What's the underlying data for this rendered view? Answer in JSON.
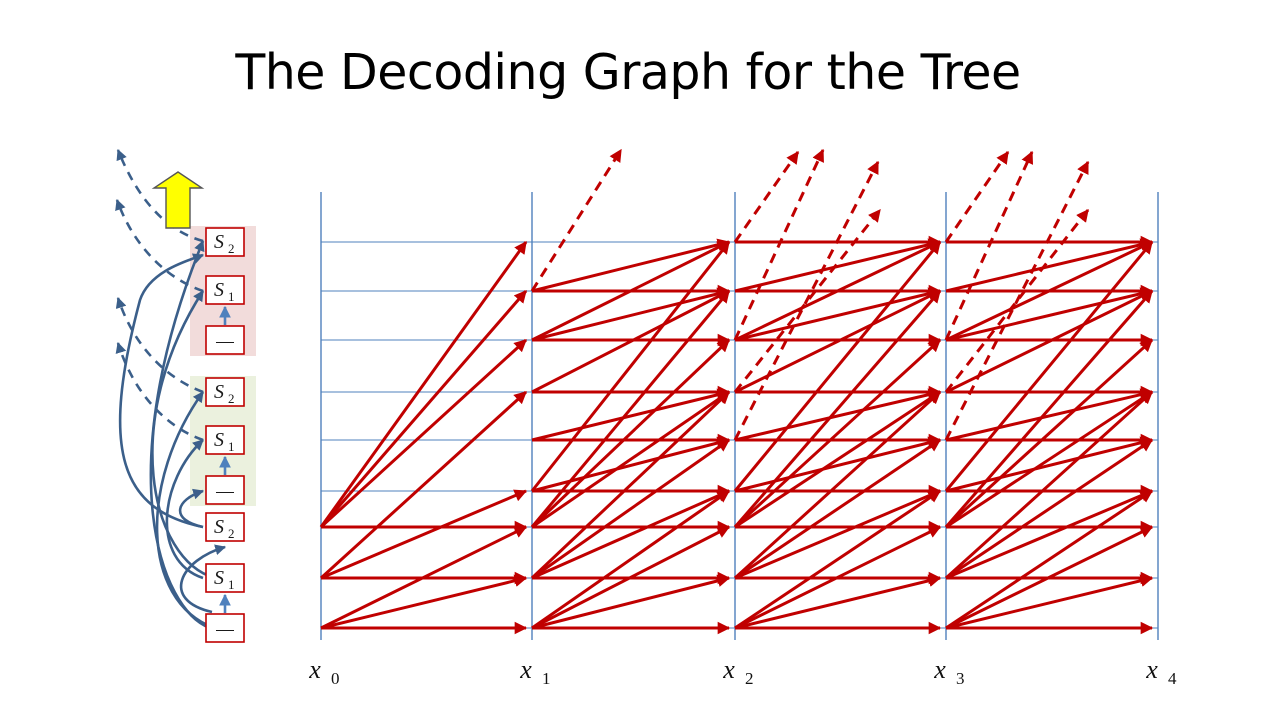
{
  "title": "The Decoding Graph for the Tree",
  "colors": {
    "edge": "#c00000",
    "grid": "#4f81bd",
    "tree_link": "#3b5f8a",
    "node_border": "#c00000",
    "node_fill": "#ffffff",
    "group_upper": "#f2dcdb",
    "group_middle": "#ebf1de",
    "arrow_yellow": "#ffff00"
  },
  "left_stack": {
    "nodes": [
      {
        "label": "S",
        "sub": "2"
      },
      {
        "label": "S",
        "sub": "1"
      },
      {
        "label": "—",
        "sub": ""
      },
      {
        "label": "S",
        "sub": "2"
      },
      {
        "label": "S",
        "sub": "1"
      },
      {
        "label": "—",
        "sub": ""
      },
      {
        "label": "S",
        "sub": "2"
      },
      {
        "label": "S",
        "sub": "1"
      },
      {
        "label": "—",
        "sub": ""
      }
    ],
    "up_arrow_icon": "yellow-up-arrow-icon"
  },
  "axis": {
    "ticks": [
      {
        "label": "x",
        "sub": "0"
      },
      {
        "label": "x",
        "sub": "1"
      },
      {
        "label": "x",
        "sub": "2"
      },
      {
        "label": "x",
        "sub": "3"
      },
      {
        "label": "x",
        "sub": "4"
      }
    ]
  }
}
